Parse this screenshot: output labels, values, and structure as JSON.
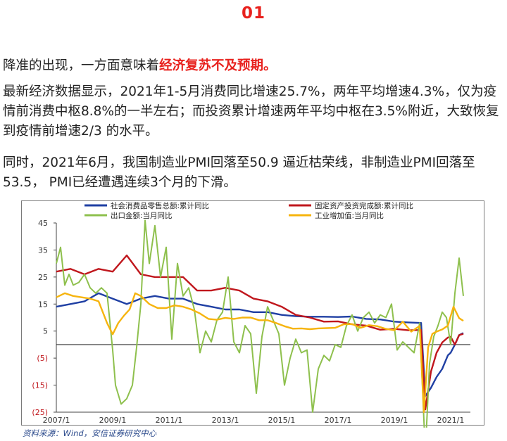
{
  "heading": "01",
  "paragraphs": [
    {
      "text": "降准的出现，一方面意味着",
      "highlight": "经济复苏不及预期。"
    },
    {
      "text": "最新经济数据显示，2021年1-5月消费同比增速25.7%，两年平均增速4.3%，仅为疫情前消费中枢8.8%的一半左右；而投资累计增速两年平均中枢在3.5%附近，大致恢复到疫情前增速2/3 的水平。",
      "highlight": ""
    },
    {
      "text": "同时，2021年6月，我国制造业PMI回落至50.9 逼近枯荣线，非制造业PMI回落至53.5， PMI已经遭遇连续3个月的下滑。",
      "highlight": ""
    }
  ],
  "source": "资料来源：Wind，安信证券研究中心",
  "colors": {
    "heading": "#e8211d",
    "retail": "#1f3fa3",
    "fai": "#c0171d",
    "export": "#8ec04d",
    "industry": "#f6b40e"
  },
  "chart_data": {
    "type": "line",
    "title": "",
    "xlabel": "",
    "ylabel": "",
    "xlim": [
      2007.0,
      2021.7
    ],
    "ylim": [
      -25,
      45
    ],
    "yticks": [
      45,
      35,
      25,
      15,
      5,
      -5,
      -15,
      -25
    ],
    "ytick_labels": [
      "45",
      "35",
      "25",
      "15",
      "5",
      "(5)",
      "(15)",
      "(25)"
    ],
    "xticks": [
      2007.0,
      2009.0,
      2011.0,
      2013.0,
      2015.0,
      2017.0,
      2019.0,
      2021.0
    ],
    "xtick_labels": [
      "2007/1",
      "2009/1",
      "2011/1",
      "2013/1",
      "2015/1",
      "2017/1",
      "2019/1",
      "2021/1"
    ],
    "legend_position": "top",
    "grid": false,
    "series": [
      {
        "name": "社会消费品零售总额:累计同比",
        "color": "#1f3fa3",
        "x": [
          2007.0,
          2007.5,
          2008.0,
          2008.5,
          2009.0,
          2009.5,
          2010.0,
          2010.5,
          2011.0,
          2011.5,
          2012.0,
          2012.5,
          2013.0,
          2013.5,
          2014.0,
          2014.5,
          2015.0,
          2015.5,
          2016.0,
          2016.5,
          2017.0,
          2017.5,
          2018.0,
          2018.5,
          2019.0,
          2019.5,
          2019.95,
          2020.1,
          2020.3,
          2020.5,
          2020.7,
          2020.9,
          2021.0,
          2021.15,
          2021.3,
          2021.45
        ],
        "y": [
          14,
          15,
          16,
          19,
          17,
          15,
          17,
          18,
          17,
          17,
          15,
          14,
          13,
          13,
          12,
          12,
          11,
          10.5,
          10.3,
          10.3,
          10.2,
          10.4,
          9.5,
          9.3,
          8.5,
          8.2,
          8.0,
          -19,
          -16,
          -12,
          -9,
          -4,
          -3,
          0,
          3.5,
          4.3
        ]
      },
      {
        "name": "固定资产投资完成额:累计同比",
        "color": "#c0171d",
        "x": [
          2007.0,
          2007.5,
          2008.0,
          2008.5,
          2009.0,
          2009.5,
          2010.0,
          2010.5,
          2011.0,
          2011.5,
          2012.0,
          2012.5,
          2013.0,
          2013.5,
          2014.0,
          2014.5,
          2015.0,
          2015.5,
          2016.0,
          2016.5,
          2017.0,
          2017.5,
          2018.0,
          2018.5,
          2019.0,
          2019.5,
          2019.95,
          2020.1,
          2020.3,
          2020.5,
          2020.7,
          2020.9,
          2021.0,
          2021.15,
          2021.3,
          2021.45
        ],
        "y": [
          27,
          28,
          26,
          28,
          27,
          33,
          26,
          25,
          25,
          25,
          20,
          20,
          21,
          20,
          17,
          16,
          14,
          11,
          10,
          8.5,
          8.6,
          7.5,
          7,
          5.5,
          5.8,
          5.3,
          5.4,
          -24,
          -10,
          -3,
          0.8,
          2.6,
          2.9,
          0,
          3.5,
          4.0
        ]
      },
      {
        "name": "出口金额:当月同比",
        "color": "#8ec04d",
        "x": [
          2007.0,
          2007.15,
          2007.3,
          2007.45,
          2007.6,
          2007.8,
          2008.0,
          2008.2,
          2008.4,
          2008.6,
          2008.8,
          2009.0,
          2009.1,
          2009.3,
          2009.5,
          2009.7,
          2009.85,
          2010.0,
          2010.15,
          2010.3,
          2010.5,
          2010.7,
          2010.9,
          2011.1,
          2011.3,
          2011.5,
          2011.7,
          2011.9,
          2012.1,
          2012.3,
          2012.5,
          2012.7,
          2012.9,
          2013.1,
          2013.3,
          2013.5,
          2013.7,
          2013.9,
          2014.1,
          2014.3,
          2014.5,
          2014.7,
          2014.9,
          2015.1,
          2015.3,
          2015.5,
          2015.7,
          2015.9,
          2016.1,
          2016.3,
          2016.5,
          2016.7,
          2016.9,
          2017.1,
          2017.3,
          2017.5,
          2017.7,
          2017.9,
          2018.1,
          2018.3,
          2018.5,
          2018.7,
          2018.9,
          2019.1,
          2019.3,
          2019.5,
          2019.7,
          2019.9,
          2020.1,
          2020.25,
          2020.4,
          2020.55,
          2020.7,
          2020.85,
          2021.0,
          2021.15,
          2021.3,
          2021.45
        ],
        "y": [
          30,
          36,
          22,
          26,
          22,
          23,
          26,
          21,
          19,
          21,
          19,
          -2,
          -15,
          -22,
          -20,
          -15,
          -1,
          15,
          46,
          30,
          44,
          25,
          36,
          2,
          30,
          18,
          21,
          13,
          -3,
          5,
          1,
          9,
          12,
          25,
          1,
          -3,
          7,
          4,
          -18,
          3,
          14,
          9,
          4,
          -15,
          -5,
          2,
          -3,
          -2,
          -25,
          -9,
          -4,
          -6,
          0,
          -1,
          7,
          11,
          5,
          10,
          12,
          8,
          11,
          10,
          15,
          -2,
          1,
          -1,
          -3,
          8,
          -40,
          -7,
          3,
          7,
          12,
          10,
          0,
          19,
          32,
          18
        ]
      },
      {
        "name": "工业增加值:当月同比",
        "color": "#f6b40e",
        "x": [
          2007.0,
          2007.3,
          2007.6,
          2007.9,
          2008.2,
          2008.5,
          2008.8,
          2009.0,
          2009.2,
          2009.4,
          2009.6,
          2009.8,
          2010.0,
          2010.3,
          2010.6,
          2010.9,
          2011.2,
          2011.5,
          2011.8,
          2012.1,
          2012.4,
          2012.7,
          2013.0,
          2013.3,
          2013.6,
          2013.9,
          2014.2,
          2014.5,
          2014.8,
          2015.1,
          2015.4,
          2015.7,
          2016.0,
          2016.3,
          2016.6,
          2016.9,
          2017.2,
          2017.5,
          2017.8,
          2018.1,
          2018.4,
          2018.7,
          2019.0,
          2019.3,
          2019.6,
          2019.9,
          2020.05,
          2020.2,
          2020.35,
          2020.5,
          2020.7,
          2020.9,
          2021.1,
          2021.3,
          2021.45
        ],
        "y": [
          17.5,
          19,
          18,
          17.5,
          17,
          16,
          8,
          3.8,
          8,
          10.7,
          13,
          19,
          18,
          15,
          13.5,
          13.5,
          14.5,
          14,
          13,
          11.5,
          9.5,
          9.2,
          9.9,
          9.5,
          10,
          10,
          9,
          9,
          8,
          6.8,
          5.9,
          6,
          5.7,
          6,
          6.1,
          6.2,
          7.5,
          7.6,
          6.2,
          7.2,
          6.8,
          5.8,
          5.3,
          8.5,
          4.8,
          6.9,
          -25,
          -1,
          4,
          4.8,
          5.6,
          7,
          14,
          9.8,
          8.8
        ]
      }
    ]
  }
}
